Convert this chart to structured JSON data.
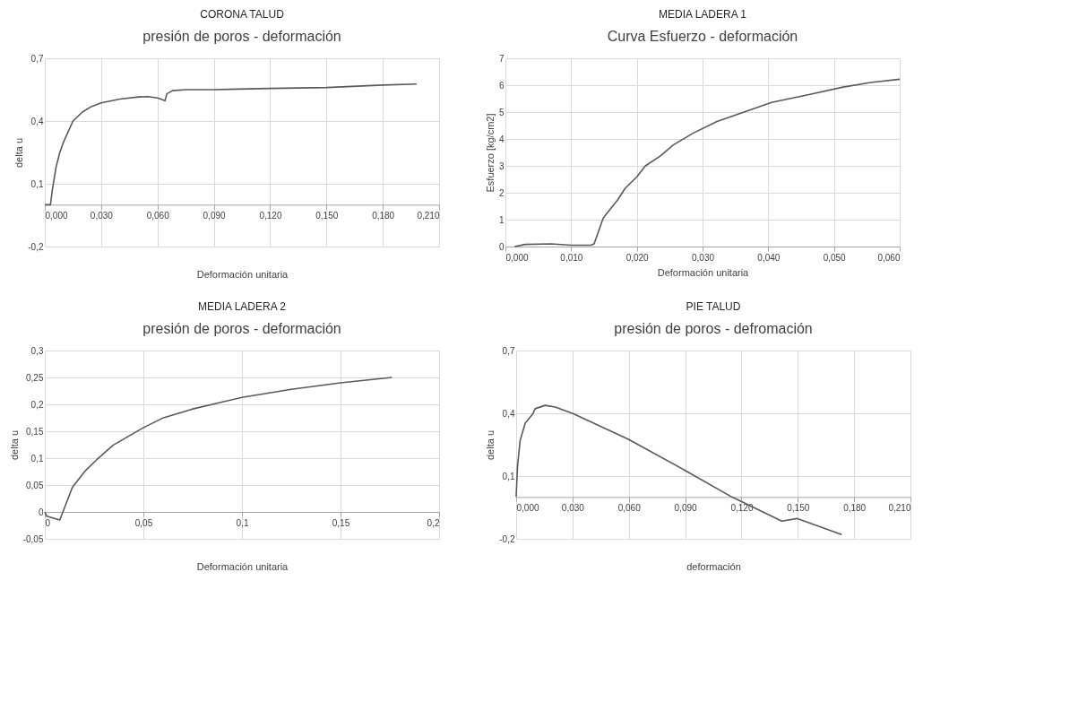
{
  "chart_data": [
    {
      "type": "line",
      "title": "CORONA TALUD",
      "subtitle": "presión de poros - deformación",
      "xlabel": "Deformación unitaria",
      "ylabel": "delta u",
      "grid": true,
      "marker": "none",
      "line_style": "solid",
      "x": [
        0,
        0.003,
        0.004,
        0.006,
        0.008,
        0.01,
        0.015,
        0.02,
        0.025,
        0.03,
        0.04,
        0.05,
        0.055,
        0.06,
        0.064,
        0.065,
        0.068,
        0.075,
        0.09,
        0.12,
        0.15,
        0.18,
        0.198
      ],
      "series": [
        {
          "color": "#595959",
          "values": [
            0,
            0,
            0.07,
            0.18,
            0.25,
            0.3,
            0.4,
            0.443,
            0.47,
            0.487,
            0.505,
            0.515,
            0.517,
            0.51,
            0.497,
            0.53,
            0.545,
            0.55,
            0.55,
            0.556,
            0.56,
            0.572,
            0.577
          ]
        }
      ],
      "xlim": [
        0,
        0.21
      ],
      "ylim": [
        -0.2,
        0.7
      ],
      "xticks": [
        {
          "value": 0,
          "label": "0,000"
        },
        {
          "value": 0.03,
          "label": "0,030"
        },
        {
          "value": 0.06,
          "label": "0,060"
        },
        {
          "value": 0.09,
          "label": "0,090"
        },
        {
          "value": 0.12,
          "label": "0,120"
        },
        {
          "value": 0.15,
          "label": "0,150"
        },
        {
          "value": 0.18,
          "label": "0,180"
        },
        {
          "value": 0.21,
          "label": "0,210"
        }
      ],
      "yticks": [
        {
          "value": -0.2,
          "label": "-0,2"
        },
        {
          "value": 0.1,
          "label": "0,1"
        },
        {
          "value": 0.4,
          "label": "0,4"
        },
        {
          "value": 0.7,
          "label": "0,7"
        }
      ]
    },
    {
      "type": "line",
      "title": "MEDIA LADERA 1",
      "subtitle": "Curva Esfuerzo - deformación",
      "xlabel": "Deformación unitaria",
      "ylabel": "Esfuerzo [kg/cm2]",
      "grid": true,
      "marker": "none",
      "line_style": "solid",
      "x": [
        0.0014,
        0.003,
        0.007,
        0.01,
        0.013,
        0.0135,
        0.0149,
        0.0171,
        0.0182,
        0.02,
        0.0213,
        0.0236,
        0.0255,
        0.0286,
        0.0322,
        0.0405,
        0.0462,
        0.0514,
        0.0556,
        0.06
      ],
      "series": [
        {
          "color": "#595959",
          "values": [
            0,
            0.08,
            0.1,
            0.05,
            0.05,
            0.1,
            1.07,
            1.74,
            2.16,
            2.59,
            3.0,
            3.37,
            3.77,
            4.22,
            4.65,
            5.36,
            5.65,
            5.93,
            6.1,
            6.22
          ]
        }
      ],
      "xlim": [
        0,
        0.06
      ],
      "ylim": [
        0,
        7
      ],
      "xticks": [
        {
          "value": 0,
          "label": "0,000"
        },
        {
          "value": 0.01,
          "label": "0,010"
        },
        {
          "value": 0.02,
          "label": "0,020"
        },
        {
          "value": 0.03,
          "label": "0,030"
        },
        {
          "value": 0.04,
          "label": "0,040"
        },
        {
          "value": 0.05,
          "label": "0,050"
        },
        {
          "value": 0.06,
          "label": "0,060"
        }
      ],
      "yticks": [
        0,
        1,
        2,
        3,
        4,
        5,
        6,
        7
      ]
    },
    {
      "type": "line",
      "title": "MEDIA LADERA 2",
      "subtitle": "presión de poros - deformación",
      "xlabel": "Deformación unitaria",
      "ylabel": "delta u",
      "grid": true,
      "marker": "none",
      "line_style": "solid",
      "x": [
        0,
        0.001,
        0.0076,
        0.0115,
        0.014,
        0.0204,
        0.0266,
        0.0346,
        0.0497,
        0.0595,
        0.0746,
        0.1,
        0.125,
        0.15,
        0.176
      ],
      "series": [
        {
          "color": "#595959",
          "values": [
            0,
            -0.008,
            -0.015,
            0.022,
            0.046,
            0.076,
            0.098,
            0.124,
            0.156,
            0.174,
            0.191,
            0.213,
            0.228,
            0.24,
            0.25
          ]
        }
      ],
      "xlim": [
        0,
        0.2
      ],
      "ylim": [
        -0.05,
        0.3
      ],
      "xticks": [
        {
          "value": 0,
          "label": "0"
        },
        {
          "value": 0.05,
          "label": "0,05"
        },
        {
          "value": 0.1,
          "label": "0,1"
        },
        {
          "value": 0.15,
          "label": "0,15"
        },
        {
          "value": 0.2,
          "label": "0,2"
        }
      ],
      "yticks": [
        {
          "value": -0.05,
          "label": "-0,05"
        },
        {
          "value": 0,
          "label": "0"
        },
        {
          "value": 0.05,
          "label": "0,05"
        },
        {
          "value": 0.1,
          "label": "0,1"
        },
        {
          "value": 0.15,
          "label": "0,15"
        },
        {
          "value": 0.2,
          "label": "0,2"
        },
        {
          "value": 0.25,
          "label": "0,25"
        },
        {
          "value": 0.3,
          "label": "0,3"
        }
      ]
    },
    {
      "type": "line",
      "title": "PIE TALUD",
      "subtitle": "presión de poros - defromación",
      "xlabel": "deformación",
      "ylabel": "delta u",
      "grid": true,
      "marker": "none",
      "line_style": "solid",
      "x": [
        0,
        0.0007,
        0.0021,
        0.0048,
        0.0089,
        0.0101,
        0.0154,
        0.0208,
        0.0305,
        0.0598,
        0.09,
        0.1149,
        0.1415,
        0.1495,
        0.1734
      ],
      "series": [
        {
          "color": "#595959",
          "values": [
            0,
            0.146,
            0.269,
            0.353,
            0.398,
            0.422,
            0.438,
            0.43,
            0.398,
            0.276,
            0.127,
            0,
            -0.115,
            -0.103,
            -0.18
          ]
        }
      ],
      "xlim": [
        0,
        0.21
      ],
      "ylim": [
        -0.2,
        0.7
      ],
      "xticks": [
        {
          "value": 0,
          "label": "0,000"
        },
        {
          "value": 0.03,
          "label": "0,030"
        },
        {
          "value": 0.06,
          "label": "0,060"
        },
        {
          "value": 0.09,
          "label": "0,090"
        },
        {
          "value": 0.12,
          "label": "0,120"
        },
        {
          "value": 0.15,
          "label": "0,150"
        },
        {
          "value": 0.18,
          "label": "0,180"
        },
        {
          "value": 0.21,
          "label": "0,210"
        }
      ],
      "yticks": [
        {
          "value": -0.2,
          "label": "-0,2"
        },
        {
          "value": 0.1,
          "label": "0,1"
        },
        {
          "value": 0.4,
          "label": "0,4"
        },
        {
          "value": 0.7,
          "label": "0,7"
        }
      ]
    }
  ]
}
